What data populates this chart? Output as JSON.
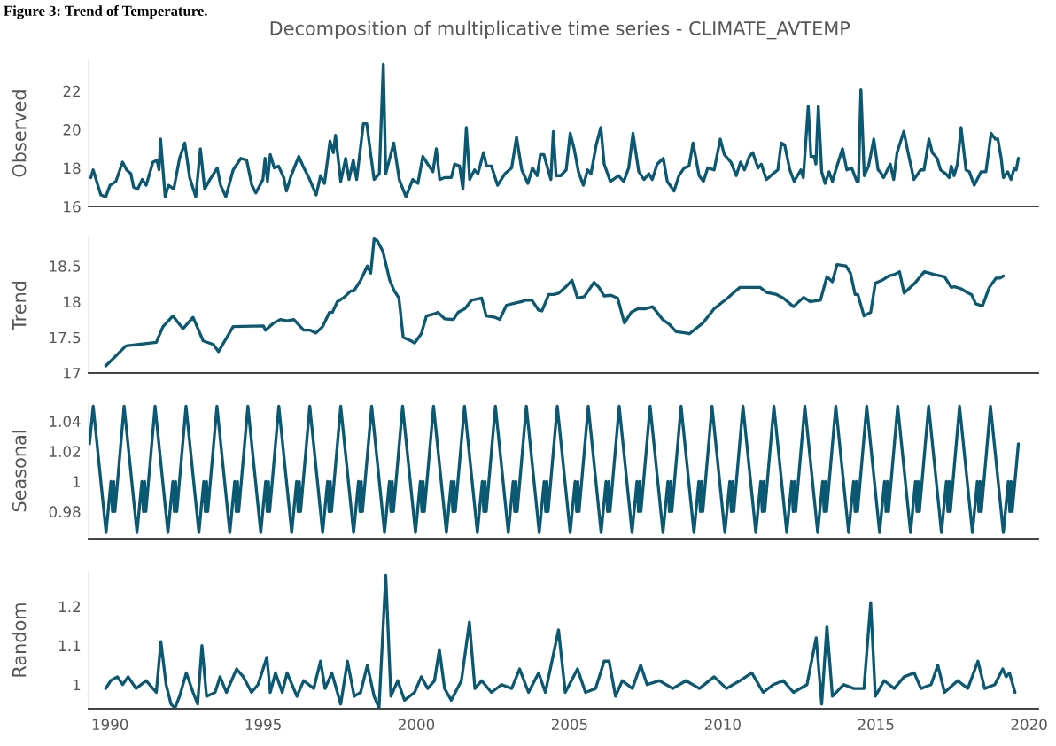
{
  "chart_data": [
    {
      "type": "line",
      "title": "Decomposition of multiplicative time series - CLIMATE_AVTEMP",
      "annotations": [
        "Figure 3: Trend of Temperature."
      ],
      "ylabel": "Observed",
      "color": "#0b5872",
      "tick_labels": "y",
      "grid": false,
      "legend": false,
      "x": [
        1989.37,
        1989.45,
        1989.7,
        1989.86,
        1990.0,
        1990.19,
        1990.41,
        1990.54,
        1990.68,
        1990.77,
        1990.9,
        1991.05,
        1991.18,
        1991.4,
        1991.53,
        1991.6,
        1991.65,
        1991.8,
        1991.91,
        1992.08,
        1992.27,
        1992.44,
        1992.6,
        1992.8,
        1992.95,
        1993.09,
        1993.26,
        1993.5,
        1993.61,
        1993.78,
        1994.02,
        1994.27,
        1994.46,
        1994.63,
        1994.76,
        1994.99,
        1995.06,
        1995.14,
        1995.23,
        1995.36,
        1995.5,
        1995.67,
        1995.76,
        1995.91,
        1996.16,
        1996.3,
        1996.49,
        1996.73,
        1996.87,
        1997.0,
        1997.18,
        1997.29,
        1997.36,
        1997.53,
        1997.69,
        1997.8,
        1997.94,
        1998.05,
        1998.27,
        1998.38,
        1998.51,
        1998.62,
        1998.79,
        1998.92,
        1999.0,
        1999.26,
        1999.44,
        1999.66,
        1999.88,
        2000.05,
        2000.21,
        2000.37,
        2000.54,
        2000.65,
        2000.76,
        2000.92,
        2001.14,
        2001.25,
        2001.41,
        2001.52,
        2001.63,
        2001.74,
        2001.9,
        2002.01,
        2002.19,
        2002.29,
        2002.45,
        2002.65,
        2002.89,
        2003.11,
        2003.27,
        2003.44,
        2003.64,
        2003.79,
        2003.94,
        2004.05,
        2004.16,
        2004.3,
        2004.39,
        2004.47,
        2004.56,
        2004.71,
        2004.89,
        2005.02,
        2005.15,
        2005.29,
        2005.45,
        2005.59,
        2005.7,
        2005.87,
        2006.02,
        2006.13,
        2006.33,
        2006.6,
        2006.77,
        2006.93,
        2007.07,
        2007.26,
        2007.43,
        2007.59,
        2007.7,
        2007.86,
        2008.06,
        2008.19,
        2008.41,
        2008.57,
        2008.74,
        2008.9,
        2009.03,
        2009.23,
        2009.37,
        2009.51,
        2009.72,
        2009.92,
        2010.05,
        2010.27,
        2010.44,
        2010.58,
        2010.71,
        2010.87,
        2010.98,
        2011.15,
        2011.26,
        2011.42,
        2011.5,
        2011.64,
        2011.8,
        2011.91,
        2012.02,
        2012.19,
        2012.33,
        2012.55,
        2012.63,
        2012.79,
        2012.88,
        2012.99,
        2013.04,
        2013.12,
        2013.23,
        2013.34,
        2013.47,
        2013.58,
        2013.69,
        2013.91,
        2014.05,
        2014.21,
        2014.38,
        2014.43,
        2014.51,
        2014.62,
        2014.76,
        2014.93,
        2015.07,
        2015.14,
        2015.25,
        2015.47,
        2015.58,
        2015.69,
        2015.91,
        2016.05,
        2016.24,
        2016.46,
        2016.57,
        2016.73,
        2016.84,
        2017.0,
        2017.11,
        2017.28,
        2017.39,
        2017.46,
        2017.55,
        2017.66,
        2017.78,
        2017.94,
        2018.05,
        2018.21,
        2018.43,
        2018.59,
        2018.76,
        2018.9,
        2018.98,
        2019.09,
        2019.16,
        2019.3,
        2019.41,
        2019.52,
        2019.58,
        2019.65
      ],
      "values": [
        17.5,
        17.9,
        16.6,
        16.5,
        17.1,
        17.3,
        18.3,
        17.9,
        17.7,
        17.0,
        16.9,
        17.4,
        17.1,
        18.3,
        18.4,
        17.9,
        19.5,
        16.5,
        17.1,
        16.9,
        18.5,
        19.3,
        17.5,
        16.5,
        19.0,
        16.9,
        17.4,
        18.0,
        17.1,
        16.5,
        17.9,
        18.5,
        18.4,
        17.1,
        16.7,
        17.4,
        18.5,
        17.3,
        18.7,
        18.0,
        18.1,
        17.5,
        16.8,
        17.6,
        18.6,
        18.1,
        17.5,
        16.6,
        17.6,
        17.2,
        19.4,
        18.8,
        19.7,
        17.3,
        18.5,
        17.4,
        18.4,
        17.4,
        20.3,
        20.3,
        18.7,
        17.4,
        17.7,
        23.4,
        17.7,
        19.3,
        17.4,
        16.5,
        17.4,
        17.2,
        18.6,
        18.2,
        17.8,
        19.0,
        17.4,
        17.5,
        17.5,
        18.2,
        18.1,
        16.9,
        20.1,
        17.4,
        17.9,
        17.7,
        18.8,
        18.1,
        18.1,
        17.1,
        17.7,
        18.0,
        19.6,
        17.9,
        17.2,
        18.0,
        17.6,
        18.7,
        18.7,
        17.9,
        17.4,
        19.9,
        17.6,
        17.6,
        17.9,
        19.8,
        19.0,
        17.8,
        17.1,
        17.9,
        17.7,
        19.2,
        20.1,
        18.2,
        17.3,
        17.6,
        17.3,
        18.0,
        19.8,
        17.8,
        17.4,
        17.7,
        17.4,
        18.2,
        18.5,
        17.3,
        16.8,
        17.6,
        18.0,
        18.1,
        19.3,
        17.6,
        17.3,
        18.0,
        17.9,
        19.5,
        18.7,
        18.3,
        17.6,
        18.3,
        17.9,
        18.6,
        18.8,
        18.0,
        18.2,
        17.4,
        17.5,
        17.7,
        17.9,
        19.3,
        19.2,
        17.9,
        17.3,
        17.9,
        17.5,
        21.2,
        18.6,
        18.6,
        18.2,
        21.2,
        17.8,
        17.2,
        17.8,
        17.3,
        17.9,
        19.0,
        17.9,
        18.0,
        17.3,
        17.3,
        22.1,
        17.6,
        18.1,
        19.5,
        17.9,
        17.8,
        17.5,
        18.2,
        17.4,
        18.8,
        19.9,
        18.8,
        17.4,
        17.9,
        17.9,
        19.5,
        18.8,
        18.5,
        17.9,
        17.7,
        17.5,
        18.1,
        17.6,
        18.2,
        20.1,
        17.9,
        17.8,
        17.1,
        17.8,
        17.8,
        19.8,
        19.5,
        19.5,
        18.5,
        17.5,
        17.8,
        17.4,
        18.0,
        17.9,
        18.5
      ],
      "xlim": [
        1989.3,
        2020.3
      ],
      "xticks": [
        1990,
        1995,
        2000,
        2005,
        2010,
        2015,
        2020
      ],
      "ylim": [
        16,
        23.6
      ],
      "yticks": [
        16,
        18,
        20,
        22
      ]
    },
    {
      "type": "line",
      "ylabel": "Trend",
      "color": "#0b5872",
      "tick_labels": "y",
      "grid": false,
      "legend": false,
      "x": [
        1989.86,
        1990.52,
        1991.51,
        1991.73,
        1992.05,
        1992.38,
        1992.71,
        1993.04,
        1993.37,
        1993.54,
        1994.02,
        1995.01,
        1995.07,
        1995.34,
        1995.56,
        1995.78,
        1996.0,
        1996.32,
        1996.54,
        1996.72,
        1996.94,
        1997.16,
        1997.26,
        1997.42,
        1997.64,
        1997.86,
        1997.96,
        1998.18,
        1998.4,
        1998.51,
        1998.62,
        1998.73,
        1998.91,
        1999.13,
        1999.28,
        1999.43,
        1999.57,
        1999.83,
        1999.94,
        2000.16,
        2000.33,
        2000.59,
        2000.7,
        2000.92,
        2001.21,
        2001.36,
        2001.58,
        2001.8,
        2002.13,
        2002.28,
        2002.57,
        2002.72,
        2002.94,
        2003.22,
        2003.44,
        2003.55,
        2003.77,
        2003.99,
        2004.1,
        2004.32,
        2004.49,
        2004.65,
        2004.86,
        2005.08,
        2005.26,
        2005.48,
        2005.8,
        2005.96,
        2006.13,
        2006.35,
        2006.57,
        2006.79,
        2007.01,
        2007.23,
        2007.49,
        2007.71,
        2008.04,
        2008.26,
        2008.48,
        2008.8,
        2008.91,
        2009.35,
        2009.72,
        2010.01,
        2010.16,
        2010.34,
        2010.56,
        2011.22,
        2011.43,
        2011.76,
        2011.98,
        2012.31,
        2012.64,
        2012.86,
        2013.19,
        2013.4,
        2013.58,
        2013.73,
        2014.02,
        2014.17,
        2014.32,
        2014.41,
        2014.61,
        2014.83,
        2014.98,
        2015.2,
        2015.42,
        2015.6,
        2015.77,
        2015.92,
        2016.25,
        2016.58,
        2016.91,
        2017.24,
        2017.46,
        2017.57,
        2017.79,
        2018.01,
        2018.12,
        2018.26,
        2018.48,
        2018.7,
        2018.92,
        2019.05,
        2019.16
      ],
      "values": [
        17.1,
        17.38,
        17.43,
        17.65,
        17.8,
        17.62,
        17.78,
        17.45,
        17.4,
        17.3,
        17.65,
        17.66,
        17.6,
        17.7,
        17.75,
        17.73,
        17.75,
        17.6,
        17.6,
        17.56,
        17.65,
        17.85,
        17.85,
        18.0,
        18.06,
        18.15,
        18.15,
        18.3,
        18.5,
        18.4,
        18.88,
        18.85,
        18.7,
        18.3,
        18.15,
        18.05,
        17.5,
        17.45,
        17.42,
        17.55,
        17.8,
        17.83,
        17.85,
        17.76,
        17.75,
        17.85,
        17.9,
        18.02,
        18.05,
        17.8,
        17.78,
        17.75,
        17.95,
        17.98,
        18.0,
        18.02,
        18.02,
        17.88,
        17.87,
        18.1,
        18.1,
        18.12,
        18.2,
        18.3,
        18.05,
        18.07,
        18.27,
        18.2,
        18.08,
        18.09,
        18.05,
        17.7,
        17.85,
        17.9,
        17.9,
        17.93,
        17.75,
        17.68,
        17.58,
        17.56,
        17.55,
        17.7,
        17.9,
        18.0,
        18.05,
        18.12,
        18.2,
        18.2,
        18.13,
        18.1,
        18.05,
        17.93,
        18.06,
        18.0,
        18.02,
        18.35,
        18.28,
        18.52,
        18.5,
        18.4,
        18.1,
        18.1,
        17.8,
        17.85,
        18.26,
        18.3,
        18.36,
        18.38,
        18.42,
        18.12,
        18.25,
        18.42,
        18.38,
        18.35,
        18.2,
        18.21,
        18.18,
        18.12,
        18.1,
        17.97,
        17.94,
        18.2,
        18.33,
        18.33,
        18.36
      ],
      "xlim": [
        1989.3,
        2020.3
      ],
      "xticks": [
        1990,
        1995,
        2000,
        2005,
        2010,
        2015,
        2020
      ],
      "ylim": [
        17,
        18.9
      ],
      "yticks": [
        17,
        17.5,
        18,
        18.5
      ]
    },
    {
      "type": "line",
      "ylabel": "Seasonal",
      "color": "#0b5872",
      "tick_labels": "y",
      "grid": false,
      "legend": false,
      "x": [
        1989.33,
        1989.45,
        1989.87,
        1990.03,
        1990.08,
        1990.12,
        1990.16,
        1990.46,
        1990.88,
        1991.04,
        1991.09,
        1991.13,
        1991.17,
        1991.47,
        1991.89,
        1992.05,
        1992.1,
        1992.14,
        1992.18,
        1992.48,
        1992.9,
        1993.06,
        1993.11,
        1993.15,
        1993.19,
        1993.49,
        1993.91,
        1994.07,
        1994.12,
        1994.16,
        1994.2,
        1994.5,
        1994.92,
        1995.08,
        1995.13,
        1995.17,
        1995.21,
        1995.51,
        1995.93,
        1996.09,
        1996.14,
        1996.18,
        1996.22,
        1996.52,
        1996.94,
        1997.1,
        1997.15,
        1997.19,
        1997.23,
        1997.53,
        1997.95,
        1998.11,
        1998.16,
        1998.2,
        1998.24,
        1998.54,
        1998.96,
        1999.12,
        1999.17,
        1999.21,
        1999.25,
        1999.55,
        1999.97,
        2000.13,
        2000.18,
        2000.22,
        2000.26,
        2000.56,
        2000.98,
        2001.14,
        2001.19,
        2001.23,
        2001.27,
        2001.57,
        2001.99,
        2002.15,
        2002.2,
        2002.24,
        2002.28,
        2002.58,
        2003.0,
        2003.16,
        2003.21,
        2003.25,
        2003.29,
        2003.59,
        2004.01,
        2004.17,
        2004.22,
        2004.26,
        2004.3,
        2004.6,
        2005.02,
        2005.18,
        2005.23,
        2005.27,
        2005.31,
        2005.61,
        2006.03,
        2006.19,
        2006.24,
        2006.28,
        2006.32,
        2006.62,
        2007.04,
        2007.2,
        2007.25,
        2007.29,
        2007.33,
        2007.63,
        2008.05,
        2008.21,
        2008.26,
        2008.3,
        2008.34,
        2008.64,
        2009.06,
        2009.22,
        2009.27,
        2009.31,
        2009.35,
        2009.65,
        2010.07,
        2010.23,
        2010.28,
        2010.32,
        2010.36,
        2010.66,
        2011.08,
        2011.24,
        2011.29,
        2011.33,
        2011.37,
        2011.67,
        2012.09,
        2012.25,
        2012.3,
        2012.34,
        2012.38,
        2012.68,
        2013.1,
        2013.26,
        2013.31,
        2013.35,
        2013.39,
        2013.69,
        2014.11,
        2014.27,
        2014.32,
        2014.36,
        2014.4,
        2014.7,
        2015.12,
        2015.28,
        2015.33,
        2015.37,
        2015.41,
        2015.71,
        2016.13,
        2016.29,
        2016.34,
        2016.38,
        2016.42,
        2016.72,
        2017.14,
        2017.3,
        2017.35,
        2017.39,
        2017.43,
        2017.73,
        2018.15,
        2018.31,
        2018.36,
        2018.4,
        2018.44,
        2018.74,
        2019.16,
        2019.32,
        2019.37,
        2019.41,
        2019.45,
        2019.65
      ],
      "values": [
        1.025,
        1.05,
        0.966,
        1.0,
        0.98,
        1.0,
        0.98,
        1.05,
        0.966,
        1.0,
        0.98,
        1.0,
        0.98,
        1.05,
        0.966,
        1.0,
        0.98,
        1.0,
        0.98,
        1.05,
        0.966,
        1.0,
        0.98,
        1.0,
        0.98,
        1.05,
        0.966,
        1.0,
        0.98,
        1.0,
        0.98,
        1.05,
        0.966,
        1.0,
        0.98,
        1.0,
        0.98,
        1.05,
        0.966,
        1.0,
        0.98,
        1.0,
        0.98,
        1.05,
        0.966,
        1.0,
        0.98,
        1.0,
        0.98,
        1.05,
        0.966,
        1.0,
        0.98,
        1.0,
        0.98,
        1.05,
        0.966,
        1.0,
        0.98,
        1.0,
        0.98,
        1.05,
        0.966,
        1.0,
        0.98,
        1.0,
        0.98,
        1.05,
        0.966,
        1.0,
        0.98,
        1.0,
        0.98,
        1.05,
        0.966,
        1.0,
        0.98,
        1.0,
        0.98,
        1.05,
        0.966,
        1.0,
        0.98,
        1.0,
        0.98,
        1.05,
        0.966,
        1.0,
        0.98,
        1.0,
        0.98,
        1.05,
        0.966,
        1.0,
        0.98,
        1.0,
        0.98,
        1.05,
        0.966,
        1.0,
        0.98,
        1.0,
        0.98,
        1.05,
        0.966,
        1.0,
        0.98,
        1.0,
        0.98,
        1.05,
        0.966,
        1.0,
        0.98,
        1.0,
        0.98,
        1.05,
        0.966,
        1.0,
        0.98,
        1.0,
        0.98,
        1.05,
        0.966,
        1.0,
        0.98,
        1.0,
        0.98,
        1.05,
        0.966,
        1.0,
        0.98,
        1.0,
        0.98,
        1.05,
        0.966,
        1.0,
        0.98,
        1.0,
        0.98,
        1.05,
        0.966,
        1.0,
        0.98,
        1.0,
        0.98,
        1.05,
        0.966,
        1.0,
        0.98,
        1.0,
        0.98,
        1.05,
        0.966,
        1.0,
        0.98,
        1.0,
        0.98,
        1.05,
        0.966,
        1.0,
        0.98,
        1.0,
        0.98,
        1.05,
        0.966,
        1.0,
        0.98,
        1.0,
        0.98,
        1.05,
        0.966,
        1.0,
        0.98,
        1.0,
        0.98,
        1.05,
        0.966,
        1.0,
        0.98,
        1.0,
        0.98,
        1.025
      ],
      "xlim": [
        1989.3,
        2020.3
      ],
      "xticks": [
        1990,
        1995,
        2000,
        2005,
        2010,
        2015,
        2020
      ],
      "ylim": [
        0.962,
        1.052
      ],
      "yticks": [
        0.98,
        1,
        1.02,
        1.04
      ]
    },
    {
      "type": "line",
      "ylabel": "Random",
      "color": "#0b5872",
      "grid": false,
      "legend": false,
      "x": [
        1989.86,
        1990.02,
        1990.24,
        1990.41,
        1990.59,
        1990.85,
        1991.18,
        1991.51,
        1991.66,
        1991.83,
        1991.99,
        1992.12,
        1992.27,
        1992.49,
        1992.71,
        1992.86,
        1993.0,
        1993.15,
        1993.43,
        1993.59,
        1993.8,
        1994.13,
        1994.35,
        1994.62,
        1994.83,
        1995.12,
        1995.23,
        1995.4,
        1995.62,
        1995.78,
        1996.1,
        1996.32,
        1996.65,
        1996.87,
        1997.02,
        1997.24,
        1997.53,
        1997.75,
        1997.97,
        1998.18,
        1998.4,
        1998.62,
        1998.78,
        1999.0,
        1999.17,
        1999.39,
        1999.61,
        1999.94,
        2000.16,
        2000.37,
        2000.59,
        2000.75,
        2000.92,
        2001.14,
        2001.47,
        2001.73,
        2001.91,
        2002.13,
        2002.45,
        2002.78,
        2003.11,
        2003.37,
        2003.66,
        2003.99,
        2004.21,
        2004.64,
        2004.86,
        2005.26,
        2005.52,
        2005.85,
        2006.13,
        2006.29,
        2006.5,
        2006.72,
        2007.05,
        2007.32,
        2007.53,
        2007.93,
        2008.37,
        2008.8,
        2009.24,
        2009.72,
        2010.12,
        2010.56,
        2010.95,
        2011.32,
        2011.65,
        2011.98,
        2012.31,
        2012.75,
        2013.05,
        2013.23,
        2013.4,
        2013.58,
        2013.95,
        2014.28,
        2014.61,
        2014.83,
        2014.98,
        2015.27,
        2015.6,
        2015.92,
        2016.25,
        2016.47,
        2016.8,
        2017.02,
        2017.24,
        2017.67,
        2018.0,
        2018.33,
        2018.55,
        2018.88,
        2019.14,
        2019.25,
        2019.36,
        2019.54
      ],
      "values": [
        0.99,
        1.01,
        1.02,
        1.0,
        1.02,
        0.99,
        1.01,
        0.98,
        1.11,
        1.0,
        0.95,
        0.94,
        0.97,
        1.03,
        0.98,
        0.95,
        1.1,
        0.97,
        0.98,
        1.02,
        0.98,
        1.04,
        1.02,
        0.98,
        1.0,
        1.07,
        0.98,
        1.03,
        0.98,
        1.03,
        0.97,
        1.01,
        0.99,
        1.06,
        0.99,
        1.03,
        0.95,
        1.06,
        0.97,
        0.98,
        1.05,
        0.97,
        0.94,
        1.28,
        0.97,
        1.01,
        0.96,
        0.98,
        1.02,
        0.99,
        1.01,
        1.09,
        0.99,
        0.96,
        1.01,
        1.16,
        0.99,
        1.01,
        0.98,
        1.0,
        0.99,
        1.04,
        0.98,
        1.03,
        0.98,
        1.14,
        0.98,
        1.04,
        0.98,
        0.99,
        1.06,
        1.06,
        0.97,
        1.01,
        0.99,
        1.05,
        1.0,
        1.01,
        0.99,
        1.01,
        0.99,
        1.02,
        0.99,
        1.01,
        1.03,
        0.98,
        1.0,
        1.01,
        0.98,
        1.0,
        1.12,
        0.95,
        1.15,
        0.97,
        1.0,
        0.99,
        0.99,
        1.21,
        0.97,
        1.01,
        0.99,
        1.02,
        1.03,
        0.99,
        1.0,
        1.05,
        0.98,
        1.01,
        0.99,
        1.06,
        0.99,
        1.0,
        1.04,
        1.02,
        1.03,
        0.98
      ],
      "xlim": [
        1989.3,
        2020.3
      ],
      "xticks": [
        1990,
        1995,
        2000,
        2005,
        2010,
        2015,
        2020
      ],
      "ylim": [
        0.938,
        1.29
      ],
      "yticks": [
        1,
        1.1,
        1.2
      ]
    }
  ]
}
